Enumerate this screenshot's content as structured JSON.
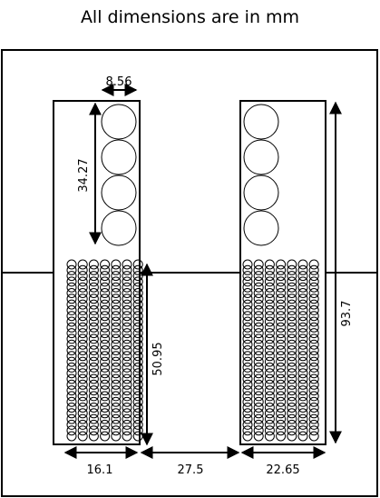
{
  "title": "All dimensions are in mm",
  "dimensions": {
    "circle_diameter": "8.56",
    "large_circle_stack_height": "34.27",
    "winding_height": "50.95",
    "window_height": "93.7",
    "left_leg_width": "16.1",
    "window_width": "27.5",
    "right_leg_width": "22.65"
  },
  "colors": {
    "stroke": "#000000",
    "background": "#ffffff"
  }
}
